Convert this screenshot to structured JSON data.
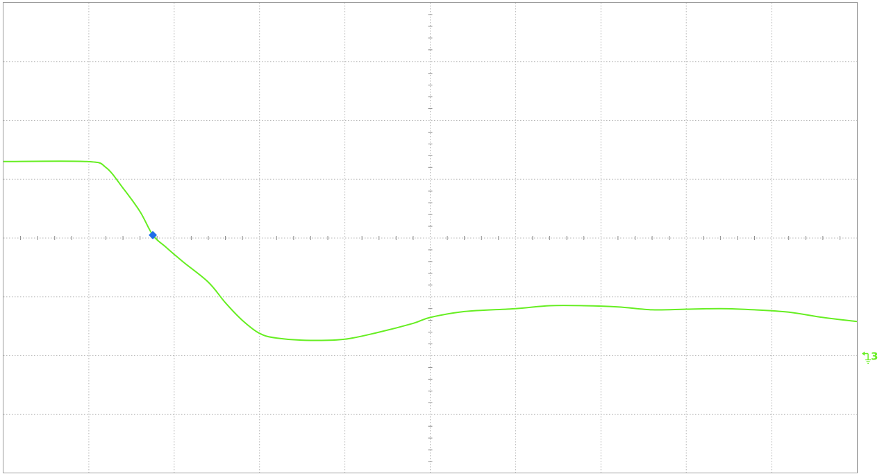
{
  "chart_data": {
    "type": "line",
    "title": "",
    "xlabel": "",
    "ylabel": "",
    "grid": true,
    "grid_style": "dotted",
    "x_divisions": 10,
    "y_divisions": 8,
    "xlim": [
      0,
      10
    ],
    "ylim": [
      -4,
      4
    ],
    "series": [
      {
        "name": "",
        "color": "#66ee22",
        "points": [
          [
            0.0,
            1.3
          ],
          [
            0.98,
            1.3
          ],
          [
            1.2,
            1.2
          ],
          [
            1.4,
            0.85
          ],
          [
            1.6,
            0.45
          ],
          [
            1.75,
            0.05
          ],
          [
            1.9,
            -0.15
          ],
          [
            2.1,
            -0.4
          ],
          [
            2.4,
            -0.75
          ],
          [
            2.6,
            -1.1
          ],
          [
            2.8,
            -1.4
          ],
          [
            3.0,
            -1.62
          ],
          [
            3.2,
            -1.7
          ],
          [
            3.6,
            -1.74
          ],
          [
            4.0,
            -1.72
          ],
          [
            4.4,
            -1.6
          ],
          [
            4.8,
            -1.45
          ],
          [
            5.0,
            -1.35
          ],
          [
            5.4,
            -1.25
          ],
          [
            6.0,
            -1.2
          ],
          [
            6.4,
            -1.15
          ],
          [
            6.8,
            -1.15
          ],
          [
            7.2,
            -1.17
          ],
          [
            7.6,
            -1.22
          ],
          [
            8.0,
            -1.21
          ],
          [
            8.4,
            -1.2
          ],
          [
            8.8,
            -1.22
          ],
          [
            9.2,
            -1.26
          ],
          [
            9.6,
            -1.35
          ],
          [
            10.0,
            -1.42
          ]
        ]
      }
    ],
    "trigger_marker": {
      "x": 1.75,
      "y": 0.05,
      "color": "#1e6ee8"
    },
    "channel_marker": {
      "label": "3",
      "y": -2.0,
      "color": "#66ee22"
    }
  }
}
